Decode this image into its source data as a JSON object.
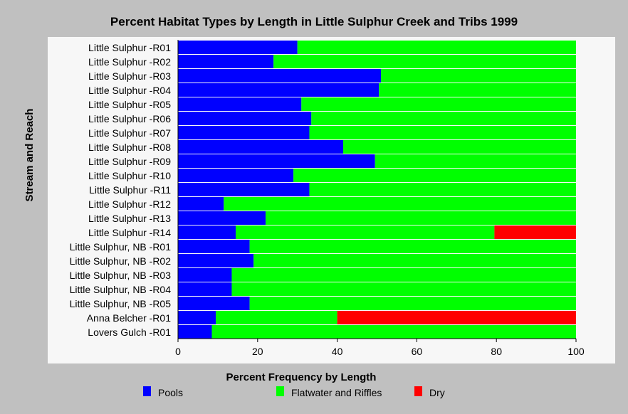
{
  "chart_data": {
    "type": "bar",
    "orientation": "horizontal",
    "stacked": true,
    "title": "Percent Habitat Types by Length in Little Sulphur Creek and Tribs 1999",
    "xlabel": "Percent Frequency by Length",
    "ylabel": "Stream and Reach",
    "xlim": [
      0,
      100
    ],
    "xticks": [
      "0",
      "20",
      "40",
      "60",
      "80",
      "100"
    ],
    "grid": false,
    "legend_position": "bottom",
    "categories": [
      "Little Sulphur -R01",
      "Little Sulphur -R02",
      "Little Sulphur -R03",
      "Little Sulphur -R04",
      "Little Sulphur -R05",
      "Little Sulphur -R06",
      "Little Sulphur -R07",
      "Little Sulphur -R08",
      "Little Sulphur -R09",
      "Little Sulphur -R10",
      "Little Sulphur -R11",
      "Little Sulphur -R12",
      "Little Sulphur -R13",
      "Little Sulphur -R14",
      "Little Sulphur, NB -R01",
      "Little Sulphur, NB -R02",
      "Little Sulphur, NB -R03",
      "Little Sulphur, NB -R04",
      "Little Sulphur, NB -R05",
      "Anna Belcher -R01",
      "Lovers Gulch -R01"
    ],
    "series": [
      {
        "name": "Pools",
        "color": "#0000ff",
        "values": [
          30,
          24,
          51,
          50.5,
          31,
          33.5,
          33,
          41.5,
          49.5,
          29,
          33,
          11.5,
          22,
          14.5,
          18,
          19,
          13.5,
          13.5,
          18,
          9.5,
          8.5
        ]
      },
      {
        "name": "Flatwater and Riffles",
        "color": "#00ff00",
        "values": [
          70,
          76,
          49,
          49.5,
          69,
          66.5,
          67,
          58.5,
          50.5,
          71,
          67,
          88.5,
          78,
          65,
          82,
          81,
          86.5,
          86.5,
          82,
          30.5,
          91.5
        ]
      },
      {
        "name": "Dry",
        "color": "#ff0000",
        "values": [
          0,
          0,
          0,
          0,
          0,
          0,
          0,
          0,
          0,
          0,
          0,
          0,
          0,
          20.5,
          0,
          0,
          0,
          0,
          0,
          60,
          0
        ]
      }
    ]
  }
}
